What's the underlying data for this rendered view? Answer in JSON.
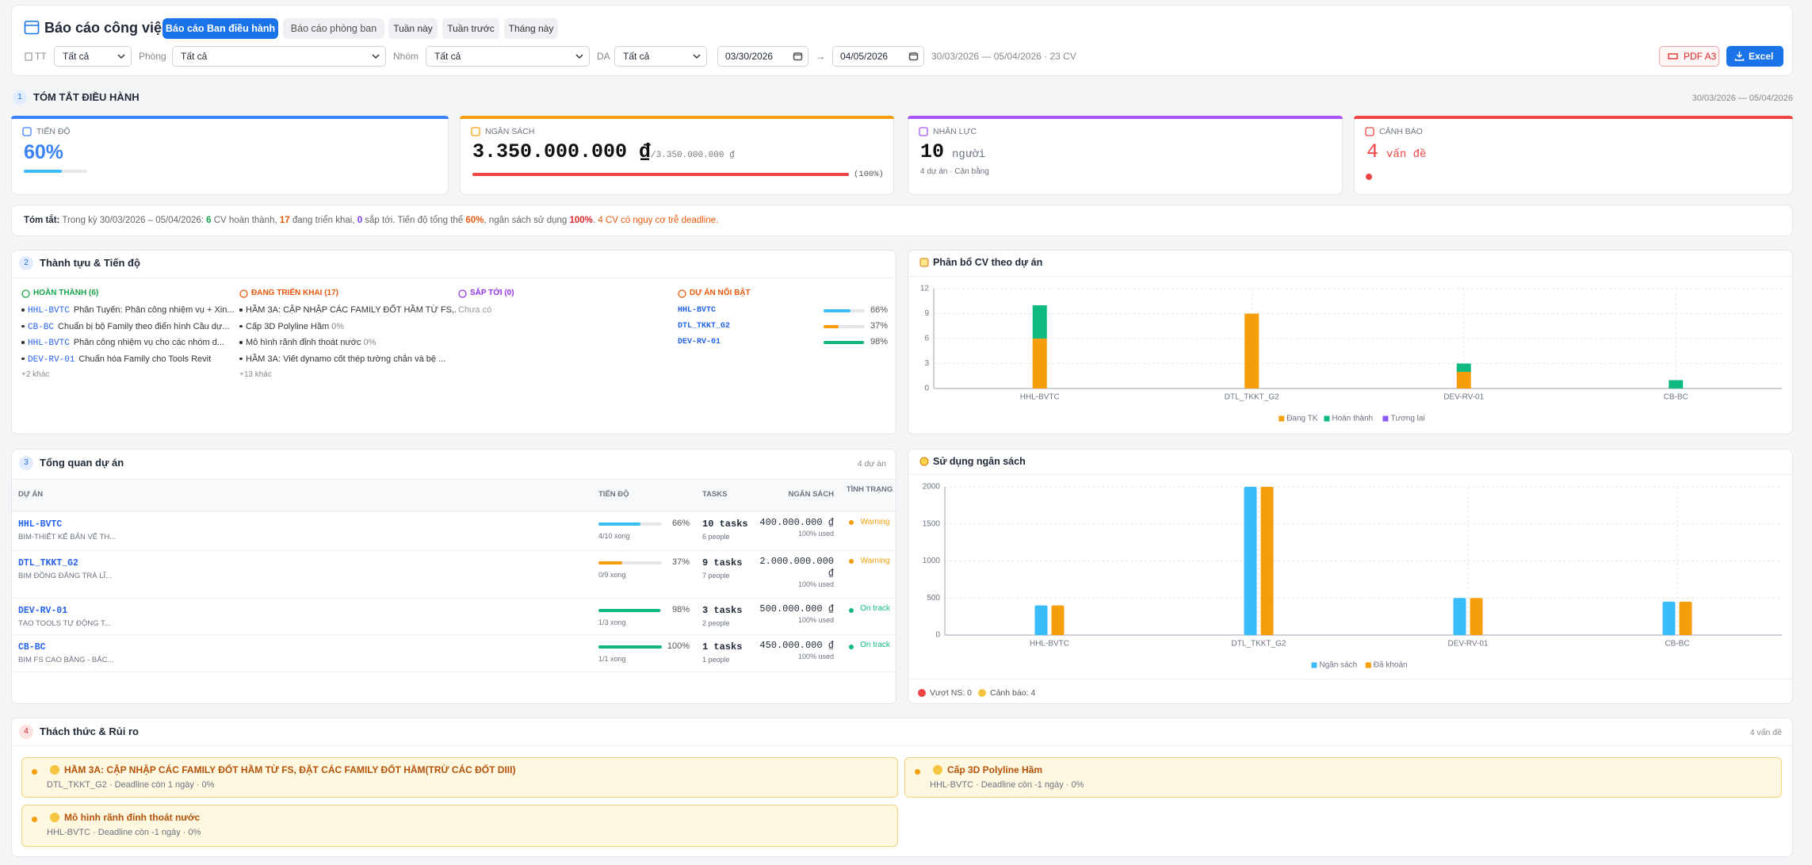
{
  "header": {
    "title": "Báo cáo công việc",
    "tabs": [
      "Báo cáo Ban điều hành",
      "Báo cáo phòng ban"
    ],
    "periods": [
      "Tuần này",
      "Tuần trước",
      "Tháng này"
    ],
    "filters": [
      {
        "label": "TT",
        "value": "Tất cả"
      },
      {
        "label": "Phòng",
        "value": "Tất cả"
      },
      {
        "label": "Nhóm",
        "value": "Tất cả"
      },
      {
        "label": "DA",
        "value": "Tất cả"
      }
    ],
    "date_from": "03/30/2026",
    "arrow": "→",
    "date_to": "04/05/2026",
    "range": "30/03/2026 — 05/04/2026 · 23 CV",
    "buttons": [
      "PDF A3",
      "Excel"
    ]
  },
  "summary_section": {
    "number": "1",
    "title": "TÓM TẮT ĐIỀU HÀNH",
    "period": "30/03/2026 — 05/04/2026",
    "cards": [
      {
        "label": "TIẾN ĐỘ",
        "value": "60%",
        "progress": 60,
        "color": "#3b82f6"
      },
      {
        "label": "NGÂN SÁCH",
        "value": "3.350.000.000 ₫",
        "sub": "/3.350.000.000 ₫",
        "progress": 100,
        "progress_label": "(100%)",
        "color": "#f59e0b"
      },
      {
        "label": "NHÂN LỰC",
        "value": "10",
        "unit": "người",
        "note": "4 dự án · Cân bằng",
        "color": "#a855f7"
      },
      {
        "label": "CẢNH BÁO",
        "value": "4",
        "unit": "vấn đề",
        "color": "#ef4444"
      }
    ],
    "text": [
      "Tóm tắt:",
      " Trong kỳ 30/03/2026 – 05/04/2026: ",
      "6",
      " CV hoàn thành, ",
      "17",
      " đang triển khai, ",
      "0",
      " sắp tới. Tiến độ tổng thể ",
      "60%",
      ", ngân sách sử dụng ",
      "100%",
      ". ",
      "4 CV có nguy cơ trễ deadline."
    ]
  },
  "achievements": {
    "number": "2",
    "title": "Thành tựu & Tiến độ",
    "columns": [
      {
        "title": "HOÀN THÀNH (6)",
        "color": "#16a34a",
        "items": [
          {
            "code": "HHL-BVTC",
            "text": "Phân Tuyến: Phân công nhiệm vụ + Xin..."
          },
          {
            "code": "CB-BC",
            "text": "Chuẩn bị bộ Family theo điển hình Cầu dự..."
          },
          {
            "code": "HHL-BVTC",
            "text": "Phân công nhiệm vụ cho các nhóm d..."
          },
          {
            "code": "DEV-RV-01",
            "text": "Chuẩn hóa Family cho Tools Revit"
          }
        ],
        "more": "+2 khác"
      },
      {
        "title": "ĐANG TRIỂN KHAI (17)",
        "color": "#ea580c",
        "items": [
          {
            "text": "HẦM 3A: CẬP NHẬP CÁC FAMILY ĐỐT HẦM TỪ FS,..."
          },
          {
            "text": "Cấp 3D Polyline Hầm",
            "pct": "0%"
          },
          {
            "text": "Mô hình rãnh đỉnh thoát nước",
            "pct": "0%"
          },
          {
            "text": "HẦM 3A: Viết dynamo cốt thép tường chắn và bệ ..."
          }
        ],
        "more": "+13 khác"
      },
      {
        "title": "SẮP TỚI (0)",
        "color": "#9333ea",
        "empty": "Chưa có"
      }
    ],
    "featured": {
      "title": "DỰ ÁN NỔI BẬT",
      "color": "#ea580c",
      "projects": [
        {
          "code": "HHL-BVTC",
          "progress": 66,
          "label": "66%",
          "color": "#38bdf8"
        },
        {
          "code": "DTL_TKKT_G2",
          "progress": 37,
          "label": "37%",
          "color": "#f59e0b"
        },
        {
          "code": "DEV-RV-01",
          "progress": 98,
          "label": "98%",
          "color": "#10b981"
        }
      ]
    }
  },
  "chart_data": [
    {
      "type": "bar",
      "stacked": true,
      "title": "Phân bổ CV theo dự án",
      "categories": [
        "HHL-BVTC",
        "DTL_TKKT_G2",
        "DEV-RV-01",
        "CB-BC"
      ],
      "series": [
        {
          "name": "Đang TK",
          "color": "#f59e0b",
          "values": [
            6,
            9,
            2,
            0
          ]
        },
        {
          "name": "Hoàn thành",
          "color": "#10b981",
          "values": [
            4,
            0,
            1,
            1
          ]
        },
        {
          "name": "Tương lai",
          "color": "#8b5cf6",
          "values": [
            0,
            0,
            0,
            0
          ]
        }
      ],
      "ylim": [
        0,
        12
      ],
      "yticks": [
        0,
        3,
        6,
        9,
        12
      ],
      "grid": true
    },
    {
      "type": "bar",
      "stacked": false,
      "title": "Sử dụng ngân sách",
      "categories": [
        "HHL-BVTC",
        "DTL_TKKT_G2",
        "DEV-RV-01",
        "CB-BC"
      ],
      "series": [
        {
          "name": "Ngân sách",
          "color": "#38bdf8",
          "values": [
            400,
            2000,
            500,
            450
          ]
        },
        {
          "name": "Đã khoán",
          "color": "#f59e0b",
          "values": [
            400,
            2000,
            500,
            450
          ]
        }
      ],
      "ylim": [
        0,
        2000
      ],
      "yticks": [
        0,
        500,
        1000,
        1500,
        2000
      ],
      "grid": true,
      "footer": [
        "Vượt NS: 0",
        "Cảnh báo: 4"
      ]
    }
  ],
  "projects": {
    "number": "3",
    "title": "Tổng quan dự án",
    "count": "4 dự án",
    "columns": [
      "DỰ ÁN",
      "TIẾN ĐỘ",
      "TASKS",
      "NGÂN SÁCH",
      "TÌNH TRẠNG"
    ],
    "rows": [
      {
        "code": "HHL-BVTC",
        "name": "BIM-THIẾT KẾ BẢN VẼ TH...",
        "progress": 66,
        "progress_label": "66%",
        "color": "#38bdf8",
        "done": "4/10 xong",
        "tasks": "10 tasks",
        "people": "6 people",
        "budget": "400.000.000 ₫",
        "used": "100% used",
        "status": "Warning",
        "status_color": "#f59e0b"
      },
      {
        "code": "DTL_TKKT_G2",
        "name": "BIM ĐỒNG ĐĂNG TRÀ LĨ...",
        "progress": 37,
        "progress_label": "37%",
        "color": "#f59e0b",
        "done": "0/9 xong",
        "tasks": "9 tasks",
        "people": "7 people",
        "budget": "2.000.000.000 ₫",
        "used": "100% used",
        "status": "Warning",
        "status_color": "#f59e0b"
      },
      {
        "code": "DEV-RV-01",
        "name": "TẠO TOOLS TỰ ĐỘNG T...",
        "progress": 98,
        "progress_label": "98%",
        "color": "#10b981",
        "done": "1/3 xong",
        "tasks": "3 tasks",
        "people": "2 people",
        "budget": "500.000.000 ₫",
        "used": "100% used",
        "status": "On track",
        "status_color": "#10b981"
      },
      {
        "code": "CB-BC",
        "name": "BIM FS CAO BẰNG - BẮC...",
        "progress": 100,
        "progress_label": "100%",
        "color": "#10b981",
        "done": "1/1 xong",
        "tasks": "1 tasks",
        "people": "1 people",
        "budget": "450.000.000 ₫",
        "used": "100% used",
        "status": "On track",
        "status_color": "#10b981"
      }
    ]
  },
  "risks": {
    "number": "4",
    "title": "Thách thức & Rủi ro",
    "count": "4 vấn đề",
    "items": [
      {
        "title": "HẦM 3A: CẬP NHẬP CÁC FAMILY ĐỐT HẦM TỪ FS, ĐẶT CÁC FAMILY ĐỐT HẦM(TRỪ CÁC ĐỐT DIII)",
        "meta": "DTL_TKKT_G2 · Deadline còn 1 ngày · 0%"
      },
      {
        "title": "Cấp 3D Polyline Hầm",
        "meta": "HHL-BVTC · Deadline còn -1 ngày · 0%"
      },
      {
        "title": "Mô hình rãnh đỉnh thoát nước",
        "meta": "HHL-BVTC · Deadline còn -1 ngày · 0%"
      }
    ]
  }
}
